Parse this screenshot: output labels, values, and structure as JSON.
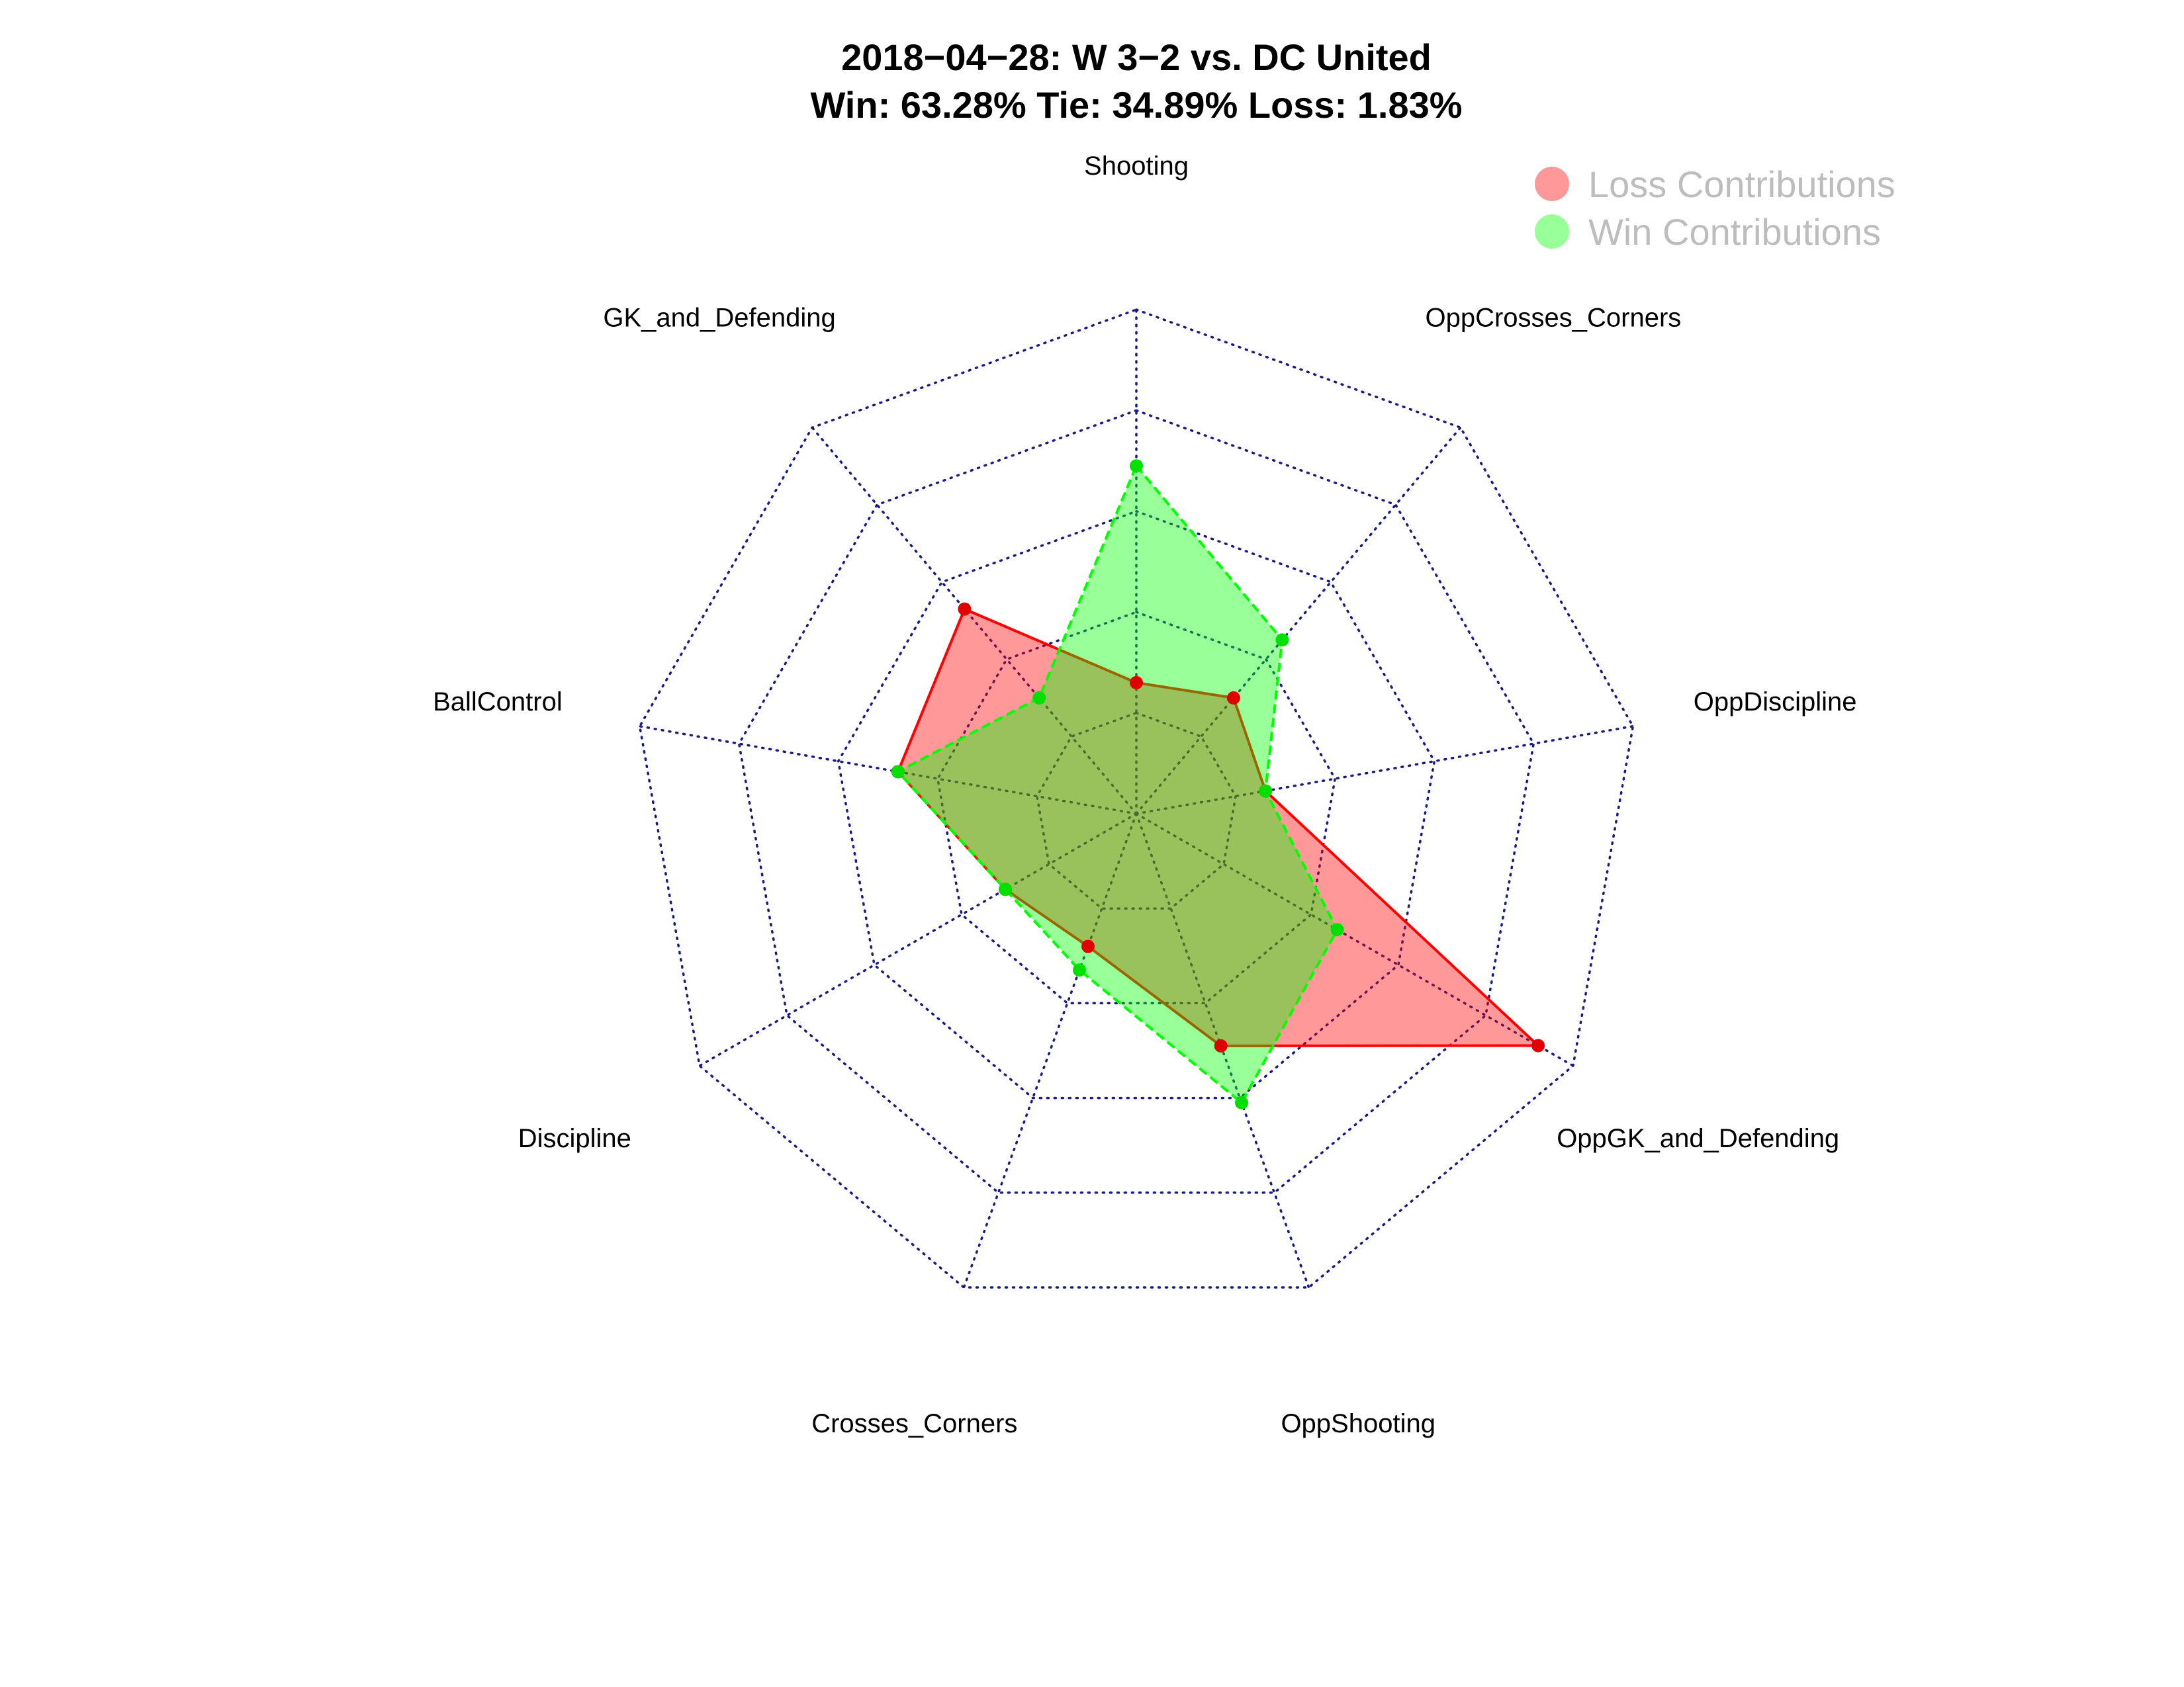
{
  "chart_data": {
    "type": "radar",
    "title": "2018−04−28:  W 3−2   vs. DC United",
    "subtitle": "Win: 63.28% Tie: 34.89% Loss: 1.83%",
    "axes": [
      "Shooting",
      "OppCrosses_Corners",
      "OppDiscipline",
      "OppGK_and_Defending",
      "OppShooting",
      "Crosses_Corners",
      "Discipline",
      "BallControl",
      "GK_and_Defending"
    ],
    "range": [
      0,
      1
    ],
    "rings": 5,
    "grid": true,
    "legend_position": "top-right",
    "series": [
      {
        "name": "Loss Contributions",
        "color": "#ff0000",
        "values": [
          0.26,
          0.3,
          0.26,
          0.92,
          0.49,
          0.28,
          0.3,
          0.48,
          0.53
        ]
      },
      {
        "name": "Win Contributions",
        "color": "#00ff00",
        "values": [
          0.69,
          0.45,
          0.26,
          0.46,
          0.61,
          0.33,
          0.3,
          0.48,
          0.3
        ]
      }
    ]
  }
}
